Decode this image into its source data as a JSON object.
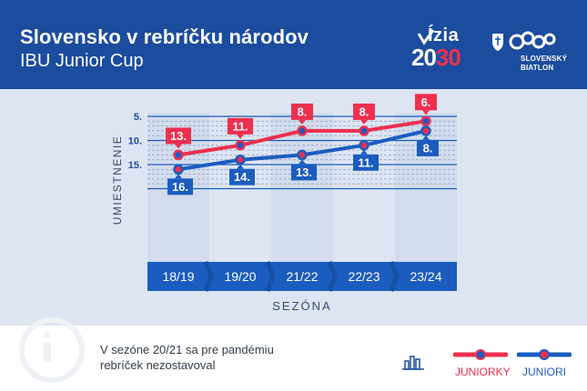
{
  "header": {
    "title": "Slovensko v rebríčku národov",
    "subtitle": "IBU Junior Cup",
    "logo_vizia_top": "Ízia",
    "logo_vizia_left": "20",
    "logo_vizia_right": "30",
    "logo_sb_line1": "SLOVENSKÝ",
    "logo_sb_line2": "BIATLON"
  },
  "colors": {
    "header_bg": "#1b4c9e",
    "juniorky": "#ee2f4e",
    "juniori": "#1b5cbf",
    "chart_bg": "#dde5f2",
    "axis_band": "#1b5cbf"
  },
  "chart_data": {
    "type": "line",
    "title": "Slovensko v rebríčku národov",
    "subtitle": "IBU Junior Cup",
    "xlabel": "SEZÓNA",
    "ylabel": "UMIESTNENIE",
    "categories": [
      "18/19",
      "19/20",
      "21/22",
      "22/23",
      "23/24"
    ],
    "y_ticks": [
      "5.",
      "10.",
      "15."
    ],
    "ylim": [
      5,
      20
    ],
    "y_inverted": true,
    "grid": true,
    "series": [
      {
        "name": "JUNIORKY",
        "values": [
          13,
          11,
          8,
          8,
          6
        ],
        "labels": [
          "13.",
          "11.",
          "8.",
          "8.",
          "6."
        ]
      },
      {
        "name": "JUNIORI",
        "values": [
          16,
          14,
          13,
          11,
          8
        ],
        "labels": [
          "16.",
          "14.",
          "13.",
          "11.",
          "8."
        ]
      }
    ]
  },
  "footer": {
    "note_line1": "V sezóne 20/21 sa pre pandémiu",
    "note_line2": "rebríček nezostavoval",
    "info_icon": "info-icon",
    "chart_icon": "bar-chart-icon",
    "legend": [
      {
        "label": "JUNIORKY",
        "color": "#ee2f4e"
      },
      {
        "label": "JUNIORI",
        "color": "#1b5cbf"
      }
    ]
  }
}
